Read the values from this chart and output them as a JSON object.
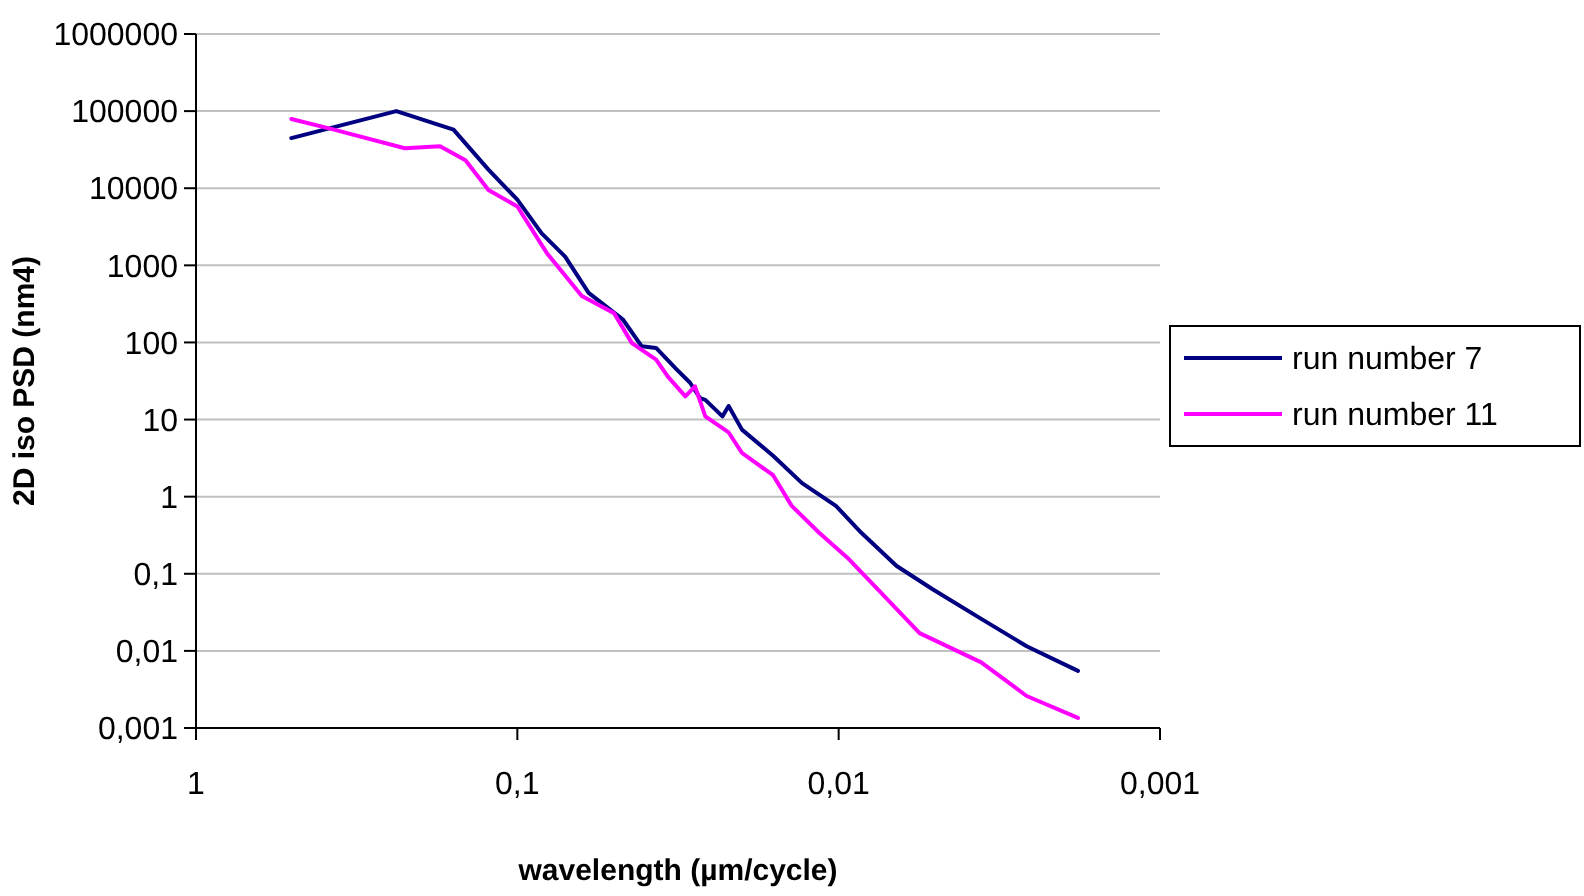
{
  "chart_data": {
    "type": "line",
    "xlabel": "wavelength (µm/cycle)",
    "ylabel": "2D iso PSD (nm4)",
    "log": "xy",
    "grid": "y",
    "legend": "right",
    "marker": "none",
    "line_style": "solid",
    "xlim": [
      1,
      0.001
    ],
    "xticks": [
      1,
      {
        "value": 0.1,
        "label": "0,1"
      },
      {
        "value": 0.01,
        "label": "0,01"
      },
      {
        "value": 0.001,
        "label": "0,001"
      }
    ],
    "ylim": [
      0.001,
      1000000
    ],
    "yticks": [
      {
        "value": 0.001,
        "label": "0,001"
      },
      {
        "value": 0.01,
        "label": "0,01"
      },
      {
        "value": 0.1,
        "label": "0,1"
      },
      1,
      10,
      100,
      1000,
      10000,
      100000,
      1000000
    ],
    "series": [
      {
        "name": "run number 7",
        "color": "#000080",
        "x": [
          0.505,
          0.238,
          0.158,
          0.123,
          0.1,
          0.084,
          0.071,
          0.06,
          0.047,
          0.041,
          0.037,
          0.032,
          0.029,
          0.027,
          0.026,
          0.023,
          0.022,
          0.02,
          0.016,
          0.013,
          0.0102,
          0.0085,
          0.0066,
          0.0051,
          0.0036,
          0.0026,
          0.0018
        ],
        "values": [
          44700,
          100000,
          57500,
          17400,
          7100,
          2600,
          1300,
          440,
          200,
          89,
          85,
          45,
          30,
          19,
          18,
          11,
          15,
          7.4,
          3.4,
          1.5,
          0.76,
          0.34,
          0.126,
          0.063,
          0.026,
          0.0115,
          0.0055
        ]
      },
      {
        "name": "run number 11",
        "color": "#ff00ff",
        "x": [
          0.505,
          0.372,
          0.224,
          0.174,
          0.145,
          0.123,
          0.1,
          0.081,
          0.063,
          0.05,
          0.044,
          0.037,
          0.034,
          0.03,
          0.028,
          0.026,
          0.022,
          0.02,
          0.016,
          0.014,
          0.0115,
          0.0093,
          0.0072,
          0.0056,
          0.0036,
          0.0026,
          0.0018
        ],
        "values": [
          79000,
          57500,
          33000,
          35000,
          23000,
          9500,
          5800,
          1450,
          400,
          240,
          98,
          60,
          36,
          20,
          27,
          11,
          6.8,
          3.7,
          1.9,
          0.76,
          0.34,
          0.155,
          0.051,
          0.017,
          0.0071,
          0.0026,
          0.00135
        ]
      }
    ]
  }
}
